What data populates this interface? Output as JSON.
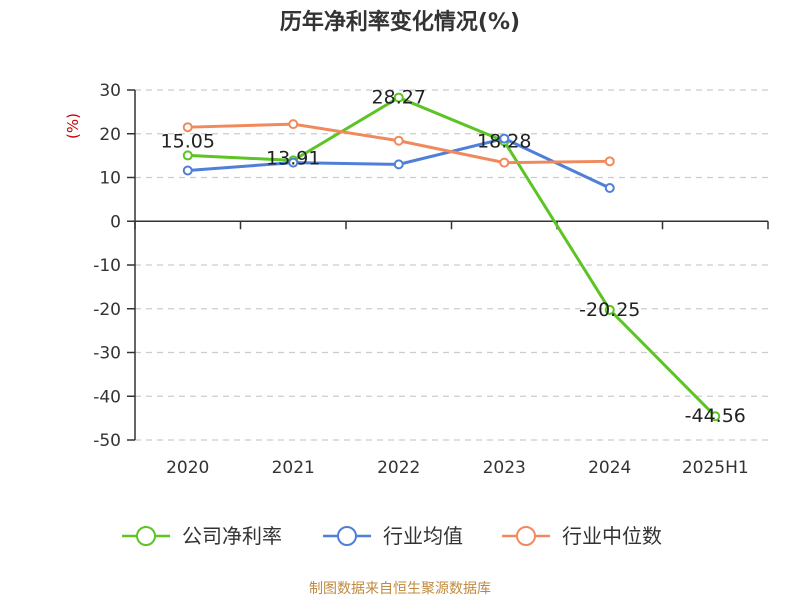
{
  "chart_data": {
    "type": "line",
    "title": "历年净利率变化情况(%)",
    "ylabel": "(%)",
    "categories": [
      "2020",
      "2021",
      "2022",
      "2023",
      "2024",
      "2025H1"
    ],
    "ylim": [
      -50,
      30
    ],
    "yticks": [
      30,
      20,
      10,
      0,
      -10,
      -20,
      -30,
      -40,
      -50
    ],
    "grid": true,
    "legend_position": "bottom",
    "series": [
      {
        "name": "公司净利率",
        "color": "#5cc424",
        "values": [
          15.05,
          13.91,
          28.27,
          18.28,
          -20.25,
          -44.56
        ],
        "labels": [
          "15.05",
          "13.91",
          "28.27",
          "18.28",
          "-20.25",
          "-44.56"
        ]
      },
      {
        "name": "行业均值",
        "color": "#4f7fd9",
        "values": [
          11.6,
          13.4,
          13.0,
          18.9,
          7.6,
          null
        ]
      },
      {
        "name": "行业中位数",
        "color": "#f08a5d",
        "values": [
          21.5,
          22.2,
          18.4,
          13.4,
          13.7,
          null
        ]
      }
    ]
  },
  "colors": {
    "unit_label": "#cc0000",
    "axis": "#333333",
    "grid": "#cccccc"
  },
  "source": "制图数据来自恒生聚源数据库"
}
